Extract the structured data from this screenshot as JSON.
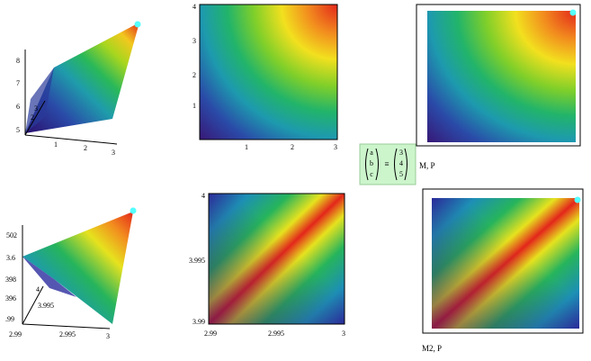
{
  "surface_top": {
    "z_labels": [
      "8",
      "7",
      "6",
      "5"
    ],
    "y_labels": [
      "2",
      "3"
    ],
    "x_labels": [
      "1",
      "2",
      "3"
    ]
  },
  "contour_top": {
    "y_labels": [
      "4",
      "3",
      "2",
      "1"
    ],
    "x_labels": [
      "1",
      "2",
      "3"
    ]
  },
  "matrix": {
    "names": [
      "a",
      "b",
      "c"
    ],
    "operator": "≡",
    "values": [
      "3",
      "4",
      "5"
    ]
  },
  "image_top": {
    "label": "M, P"
  },
  "surface_bottom": {
    "z_labels": [
      "502",
      "3.6",
      "398",
      "396",
      ".99"
    ],
    "y_labels": [
      "4",
      "3.995"
    ],
    "x_labels": [
      "2.99",
      "2.995",
      "3"
    ]
  },
  "contour_bottom": {
    "y_labels": [
      "4",
      "3.995",
      "3.99"
    ],
    "x_labels": [
      "2.99",
      "2.995",
      "3"
    ]
  },
  "image_bottom": {
    "label": "M2, P"
  }
}
